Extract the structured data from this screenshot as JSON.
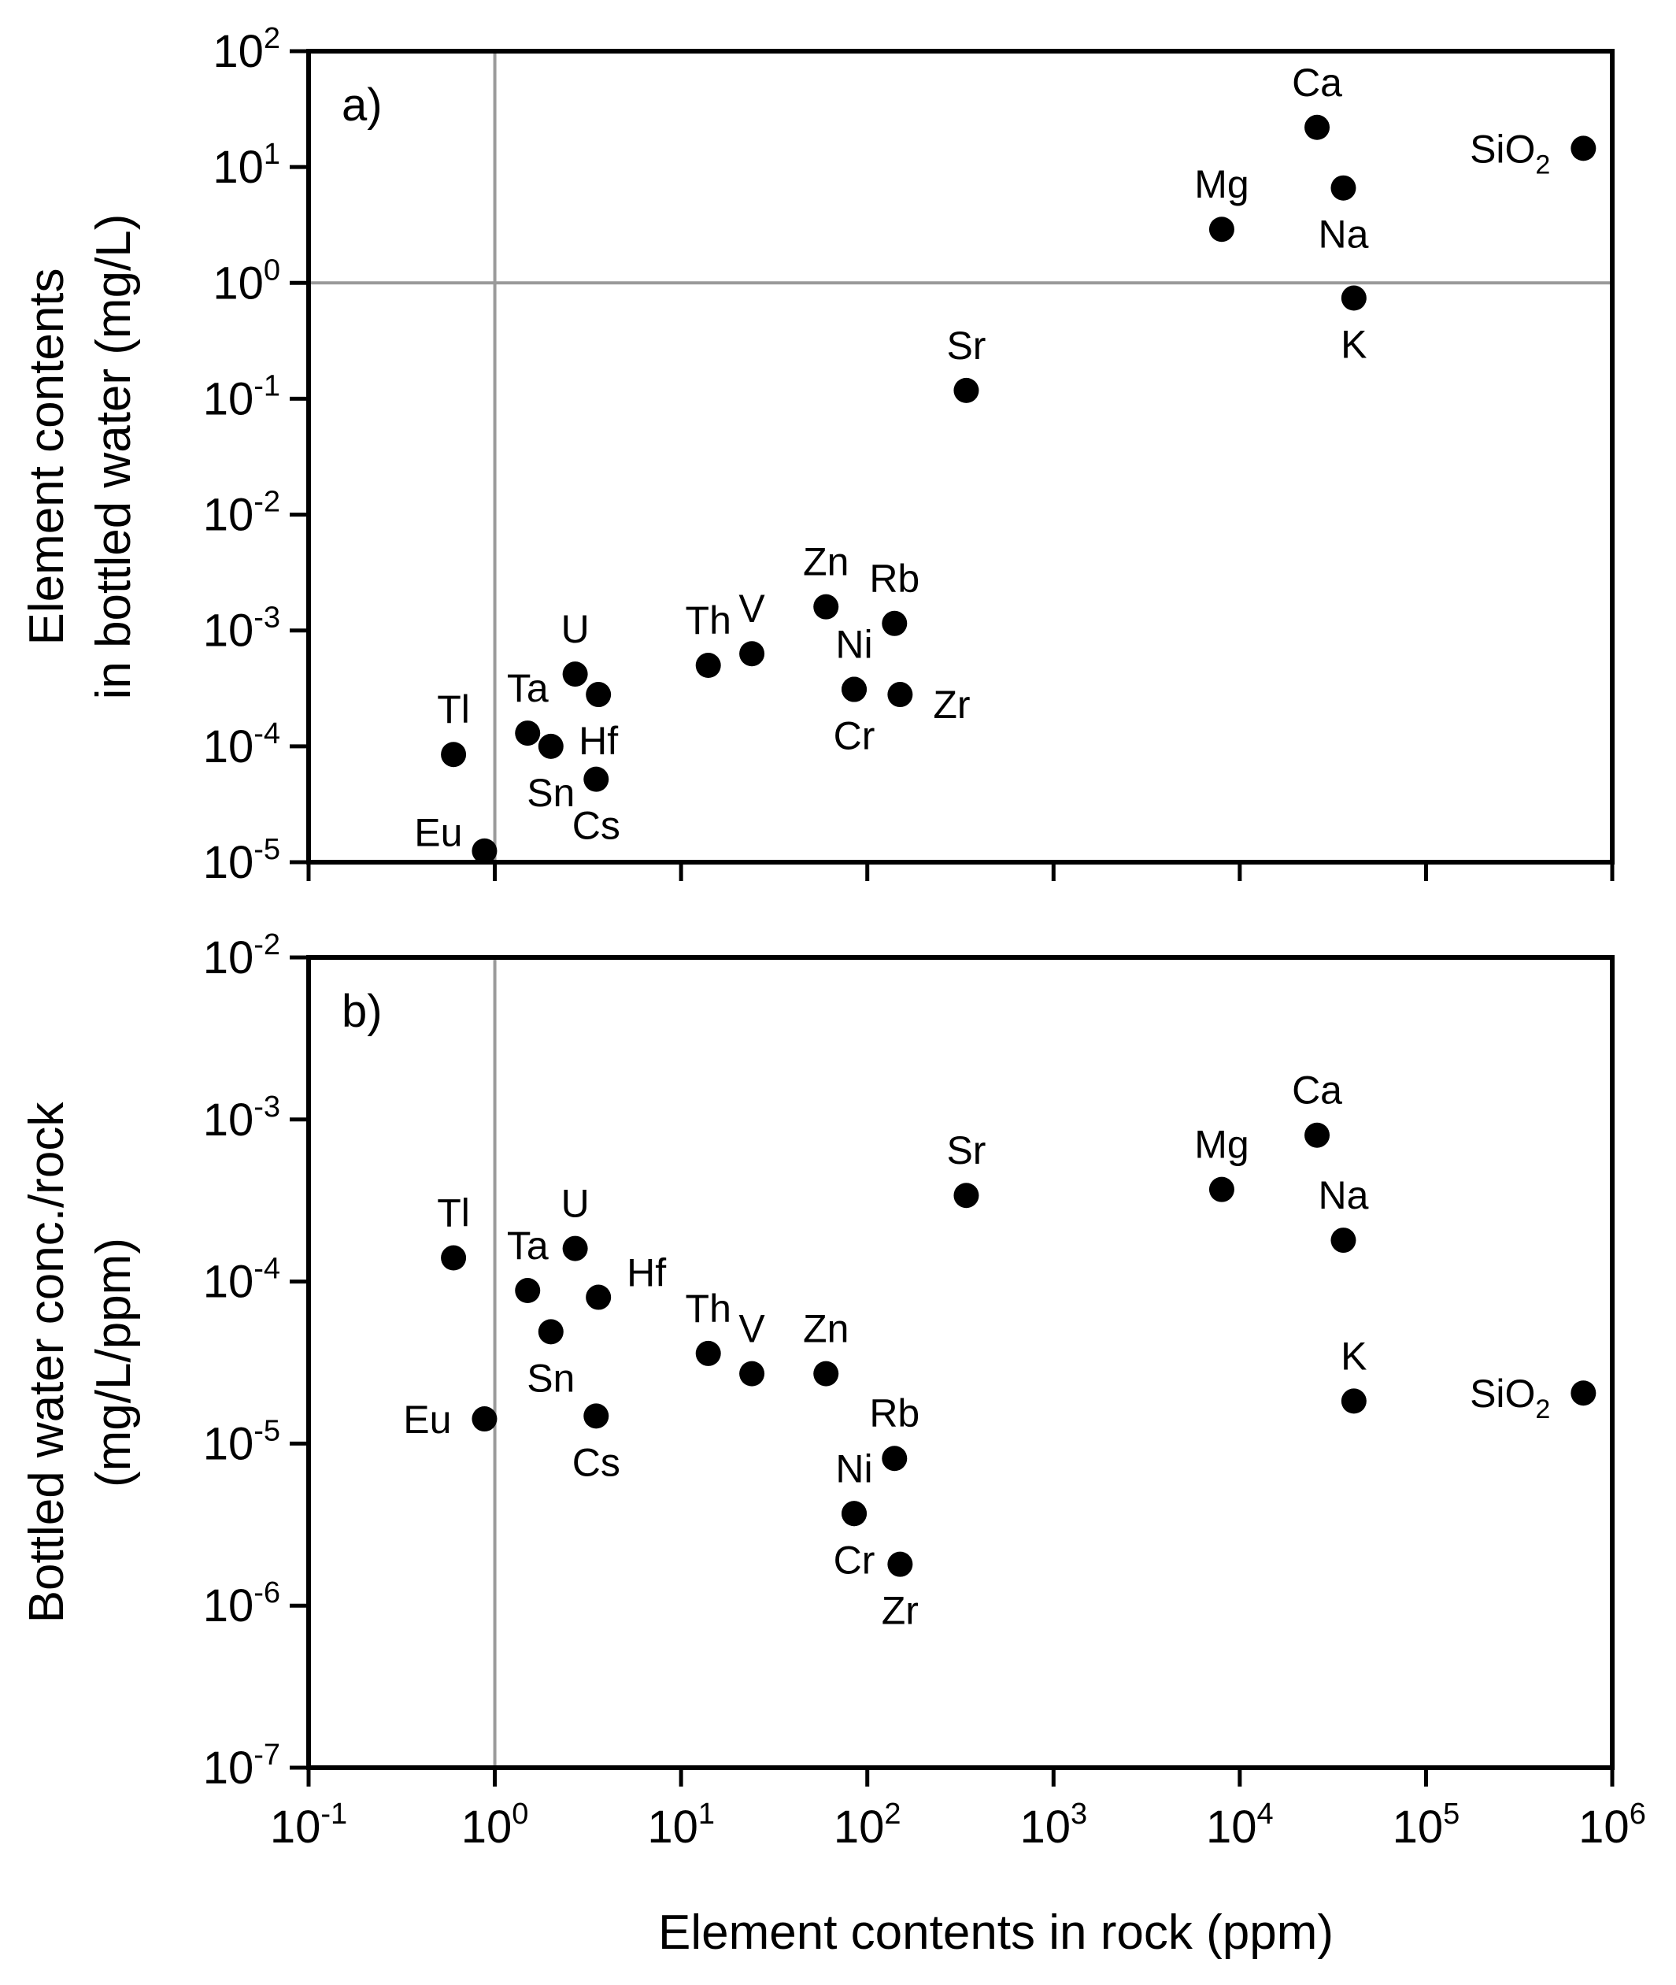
{
  "chart_data": [
    {
      "type": "scatter",
      "panel_label": "a)",
      "xscale": "log",
      "yscale": "log",
      "xlim": [
        0.1,
        1000000
      ],
      "ylim": [
        1e-05,
        100
      ],
      "xlabel": "Element contents in rock (ppm)",
      "ylabel_lines": [
        "Element contents",
        "in bottled water (mg/L)"
      ],
      "x_ticks": [
        {
          "base": "10",
          "exp": "-1"
        },
        {
          "base": "10",
          "exp": "0"
        },
        {
          "base": "10",
          "exp": "1"
        },
        {
          "base": "10",
          "exp": "2"
        },
        {
          "base": "10",
          "exp": "3"
        },
        {
          "base": "10",
          "exp": "4"
        },
        {
          "base": "10",
          "exp": "5"
        },
        {
          "base": "10",
          "exp": "6"
        }
      ],
      "y_ticks": [
        {
          "base": "10",
          "exp": "-5"
        },
        {
          "base": "10",
          "exp": "-4"
        },
        {
          "base": "10",
          "exp": "-3"
        },
        {
          "base": "10",
          "exp": "-2"
        },
        {
          "base": "10",
          "exp": "-1"
        },
        {
          "base": "10",
          "exp": "0"
        },
        {
          "base": "10",
          "exp": "1"
        },
        {
          "base": "10",
          "exp": "2"
        }
      ],
      "reference_lines": {
        "x": 1,
        "y": 1
      },
      "points": [
        {
          "label": "Eu",
          "sub": "",
          "x": 0.88,
          "y": 1.25e-05,
          "pos": "nw"
        },
        {
          "label": "Tl",
          "sub": "",
          "x": 0.6,
          "y": 8.5e-05,
          "pos": "n"
        },
        {
          "label": "Ta",
          "sub": "",
          "x": 1.5,
          "y": 0.00013,
          "pos": "n"
        },
        {
          "label": "Sn",
          "sub": "",
          "x": 2.0,
          "y": 0.0001,
          "pos": "s"
        },
        {
          "label": "U",
          "sub": "",
          "x": 2.7,
          "y": 0.00042,
          "pos": "n"
        },
        {
          "label": "Hf",
          "sub": "",
          "x": 3.6,
          "y": 0.00028,
          "pos": "s"
        },
        {
          "label": "Cs",
          "sub": "",
          "x": 3.5,
          "y": 5.2e-05,
          "pos": "s"
        },
        {
          "label": "Th",
          "sub": "",
          "x": 14,
          "y": 0.0005,
          "pos": "n"
        },
        {
          "label": "V",
          "sub": "",
          "x": 24,
          "y": 0.00063,
          "pos": "n"
        },
        {
          "label": "Zn",
          "sub": "",
          "x": 60,
          "y": 0.0016,
          "pos": "n"
        },
        {
          "label": "Ni",
          "sub": "",
          "x": 85,
          "y": 0.00031,
          "pos": "n"
        },
        {
          "label": "Cr",
          "sub": "",
          "x": 85,
          "y": 0.00031,
          "pos": "s"
        },
        {
          "label": "Rb",
          "sub": "",
          "x": 140,
          "y": 0.00115,
          "pos": "n"
        },
        {
          "label": "Zr",
          "sub": "",
          "x": 150,
          "y": 0.00028,
          "pos": "e"
        },
        {
          "label": "Sr",
          "sub": "",
          "x": 340,
          "y": 0.118,
          "pos": "n"
        },
        {
          "label": "Mg",
          "sub": "",
          "x": 8000,
          "y": 2.9,
          "pos": "n"
        },
        {
          "label": "Ca",
          "sub": "",
          "x": 26000,
          "y": 22,
          "pos": "n"
        },
        {
          "label": "Na",
          "sub": "",
          "x": 36000,
          "y": 6.6,
          "pos": "s"
        },
        {
          "label": "K",
          "sub": "",
          "x": 41000,
          "y": 0.74,
          "pos": "s"
        },
        {
          "label": "SiO",
          "sub": "2",
          "x": 700000,
          "y": 14.5,
          "pos": "w"
        }
      ]
    },
    {
      "type": "scatter",
      "panel_label": "b)",
      "xscale": "log",
      "yscale": "log",
      "xlim": [
        0.1,
        1000000
      ],
      "ylim": [
        1e-07,
        0.01
      ],
      "xlabel": "Element contents in rock (ppm)",
      "ylabel_lines": [
        "Bottled water conc./rock",
        "(mg/L/ppm)"
      ],
      "x_ticks": [
        {
          "base": "10",
          "exp": "-1"
        },
        {
          "base": "10",
          "exp": "0"
        },
        {
          "base": "10",
          "exp": "1"
        },
        {
          "base": "10",
          "exp": "2"
        },
        {
          "base": "10",
          "exp": "3"
        },
        {
          "base": "10",
          "exp": "4"
        },
        {
          "base": "10",
          "exp": "5"
        },
        {
          "base": "10",
          "exp": "6"
        }
      ],
      "y_ticks": [
        {
          "base": "10",
          "exp": "-7"
        },
        {
          "base": "10",
          "exp": "-6"
        },
        {
          "base": "10",
          "exp": "-5"
        },
        {
          "base": "10",
          "exp": "-4"
        },
        {
          "base": "10",
          "exp": "-3"
        },
        {
          "base": "10",
          "exp": "-2"
        }
      ],
      "reference_lines": {
        "x": 1
      },
      "points": [
        {
          "label": "Eu",
          "sub": "",
          "x": 0.88,
          "y": 1.42e-05,
          "pos": "w"
        },
        {
          "label": "Tl",
          "sub": "",
          "x": 0.6,
          "y": 0.00014,
          "pos": "n"
        },
        {
          "label": "Ta",
          "sub": "",
          "x": 1.5,
          "y": 8.8e-05,
          "pos": "n"
        },
        {
          "label": "Sn",
          "sub": "",
          "x": 2.0,
          "y": 4.9e-05,
          "pos": "s"
        },
        {
          "label": "U",
          "sub": "",
          "x": 2.7,
          "y": 0.00016,
          "pos": "n"
        },
        {
          "label": "Hf",
          "sub": "",
          "x": 3.6,
          "y": 8e-05,
          "pos": "ne"
        },
        {
          "label": "Cs",
          "sub": "",
          "x": 3.5,
          "y": 1.48e-05,
          "pos": "s"
        },
        {
          "label": "Th",
          "sub": "",
          "x": 14,
          "y": 3.6e-05,
          "pos": "n"
        },
        {
          "label": "V",
          "sub": "",
          "x": 24,
          "y": 2.7e-05,
          "pos": "n"
        },
        {
          "label": "Zn",
          "sub": "",
          "x": 60,
          "y": 2.7e-05,
          "pos": "n"
        },
        {
          "label": "Ni",
          "sub": "",
          "x": 85,
          "y": 3.7e-06,
          "pos": "n"
        },
        {
          "label": "Cr",
          "sub": "",
          "x": 85,
          "y": 3.7e-06,
          "pos": "s"
        },
        {
          "label": "Rb",
          "sub": "",
          "x": 140,
          "y": 8.1e-06,
          "pos": "n"
        },
        {
          "label": "Zr",
          "sub": "",
          "x": 150,
          "y": 1.8e-06,
          "pos": "s"
        },
        {
          "label": "Sr",
          "sub": "",
          "x": 340,
          "y": 0.00034,
          "pos": "n"
        },
        {
          "label": "Mg",
          "sub": "",
          "x": 8000,
          "y": 0.00037,
          "pos": "n"
        },
        {
          "label": "Ca",
          "sub": "",
          "x": 26000,
          "y": 0.0008,
          "pos": "n"
        },
        {
          "label": "Na",
          "sub": "",
          "x": 36000,
          "y": 0.00018,
          "pos": "n"
        },
        {
          "label": "K",
          "sub": "",
          "x": 41000,
          "y": 1.83e-05,
          "pos": "n"
        },
        {
          "label": "SiO",
          "sub": "2",
          "x": 700000,
          "y": 2.05e-05,
          "pos": "w"
        }
      ]
    }
  ]
}
